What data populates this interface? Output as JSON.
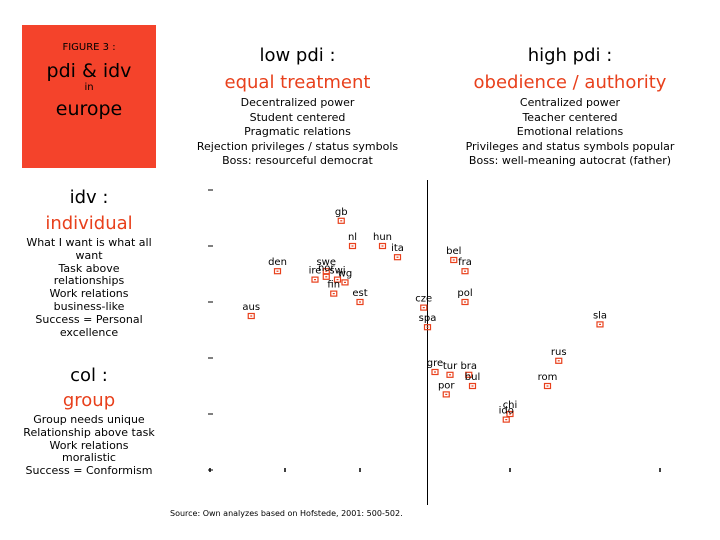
{
  "figure": {
    "label": "FIGURE 3 :",
    "title": "pdi & idv",
    "in": "in",
    "region": "europe"
  },
  "columns": {
    "low": {
      "title": "low pdi :",
      "subtitle": "equal treatment",
      "items": [
        "Decentralized power",
        "Student centered",
        "Pragmatic relations",
        "Rejection privileges / status symbols",
        "Boss: resourceful democrat"
      ]
    },
    "high": {
      "title": "high pdi :",
      "subtitle": "obedience / authority",
      "items": [
        "Centralized power",
        "Teacher centered",
        "Emotional relations",
        "Privileges and status symbols popular",
        "Boss: well-meaning autocrat (father)"
      ]
    }
  },
  "rows": {
    "idv": {
      "title": "idv :",
      "subtitle": "individual",
      "items": [
        "What I want is what all want",
        "Task above relationships",
        "Work relations business-like",
        "Success = Personal excellence"
      ]
    },
    "col": {
      "title": "col :",
      "subtitle": "group",
      "items": [
        "Group needs unique",
        "Relationship above task",
        "Work relations moralistic",
        "Success = Conformism"
      ]
    }
  },
  "source": "Source: Own analyzes based on Hofstede, 2001: 500-502.",
  "colors": {
    "accent": "#f4432b",
    "marker": "#e8401c",
    "axis": "#000000"
  },
  "chart_data": {
    "type": "scatter",
    "title": "",
    "xlabel": "",
    "ylabel": "",
    "xlim": [
      0,
      120
    ],
    "ylim": [
      0,
      100
    ],
    "x_divider": 58,
    "grid": false,
    "marker_color": "#e8401c",
    "points": [
      {
        "label": "gb",
        "x": 35,
        "y": 89
      },
      {
        "label": "nl",
        "x": 38,
        "y": 80
      },
      {
        "label": "hun",
        "x": 46,
        "y": 80
      },
      {
        "label": "ita",
        "x": 50,
        "y": 76
      },
      {
        "label": "bel",
        "x": 65,
        "y": 75
      },
      {
        "label": "den",
        "x": 18,
        "y": 71
      },
      {
        "label": "swe",
        "x": 31,
        "y": 71
      },
      {
        "label": "nor",
        "x": 31,
        "y": 69
      },
      {
        "label": "ire",
        "x": 28,
        "y": 68
      },
      {
        "label": "swi",
        "x": 34,
        "y": 68
      },
      {
        "label": "wg",
        "x": 36,
        "y": 67
      },
      {
        "label": "fra",
        "x": 68,
        "y": 71
      },
      {
        "label": "fin",
        "x": 33,
        "y": 63
      },
      {
        "label": "cze",
        "x": 57,
        "y": 58
      },
      {
        "label": "pol",
        "x": 68,
        "y": 60
      },
      {
        "label": "aus",
        "x": 11,
        "y": 55
      },
      {
        "label": "est",
        "x": 40,
        "y": 60
      },
      {
        "label": "spa",
        "x": 58,
        "y": 51
      },
      {
        "label": "sla",
        "x": 104,
        "y": 52
      },
      {
        "label": "rus",
        "x": 93,
        "y": 39
      },
      {
        "label": "gre",
        "x": 60,
        "y": 35
      },
      {
        "label": "tur",
        "x": 64,
        "y": 34
      },
      {
        "label": "bra",
        "x": 69,
        "y": 34
      },
      {
        "label": "bul",
        "x": 70,
        "y": 30
      },
      {
        "label": "rom",
        "x": 90,
        "y": 30
      },
      {
        "label": "por",
        "x": 63,
        "y": 27
      },
      {
        "label": "chi",
        "x": 80,
        "y": 20
      },
      {
        "label": "ido",
        "x": 79,
        "y": 18
      }
    ]
  }
}
